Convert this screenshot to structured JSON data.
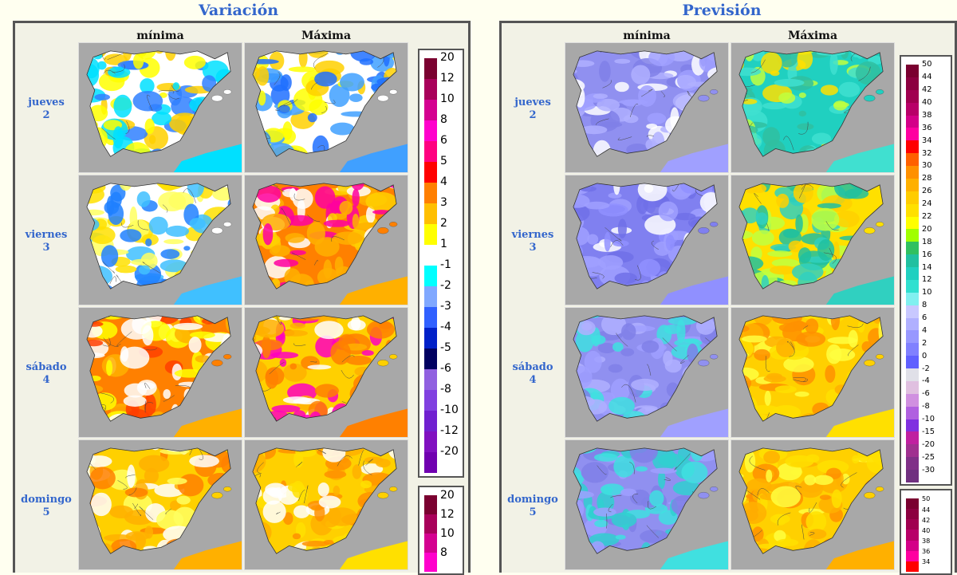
{
  "left_panel": {
    "title": "Variación",
    "columns": [
      "mínima",
      "Máxima"
    ],
    "rows": [
      {
        "day": "jueves",
        "num": "2",
        "maps": [
          "var-min-jue",
          "var-max-jue"
        ]
      },
      {
        "day": "viernes",
        "num": "3",
        "maps": [
          "var-min-vie",
          "var-max-vie"
        ]
      },
      {
        "day": "sábado",
        "num": "4",
        "maps": [
          "var-min-sab",
          "var-max-sab"
        ]
      },
      {
        "day": "domingo",
        "num": "5",
        "maps": [
          "var-min-dom",
          "var-max-dom"
        ]
      }
    ],
    "legend": [
      {
        "label": "20",
        "color": "#7a0030"
      },
      {
        "label": "12",
        "color": "#a8005a"
      },
      {
        "label": "10",
        "color": "#d40090"
      },
      {
        "label": "8",
        "color": "#ff00cc"
      },
      {
        "label": "6",
        "color": "#ff0080"
      },
      {
        "label": "5",
        "color": "#ff0000"
      },
      {
        "label": "4",
        "color": "#ff7f00"
      },
      {
        "label": "3",
        "color": "#ffbf00"
      },
      {
        "label": "2",
        "color": "#ffff00"
      },
      {
        "label": "1",
        "color": "#ffffff"
      },
      {
        "label": "-1",
        "color": "#00ffff"
      },
      {
        "label": "-2",
        "color": "#80a8ff"
      },
      {
        "label": "-3",
        "color": "#3060ff"
      },
      {
        "label": "-4",
        "color": "#0020c8"
      },
      {
        "label": "-5",
        "color": "#000060"
      },
      {
        "label": "-6",
        "color": "#9060e0"
      },
      {
        "label": "-8",
        "color": "#8040e0"
      },
      {
        "label": "-10",
        "color": "#7020d0"
      },
      {
        "label": "-12",
        "color": "#8010c0"
      },
      {
        "label": "-20",
        "color": "#7000b0"
      }
    ],
    "legend2": [
      {
        "label": "20",
        "color": "#7a0030"
      },
      {
        "label": "12",
        "color": "#a8005a"
      },
      {
        "label": "10",
        "color": "#d40090"
      },
      {
        "label": "8",
        "color": "#ff00cc"
      }
    ]
  },
  "right_panel": {
    "title": "Previsión",
    "columns": [
      "mínima",
      "Máxima"
    ],
    "rows": [
      {
        "day": "jueves",
        "num": "2"
      },
      {
        "day": "viernes",
        "num": "3"
      },
      {
        "day": "sábado",
        "num": "4"
      },
      {
        "day": "domingo",
        "num": "5"
      }
    ],
    "legend": [
      {
        "label": "50",
        "color": "#7a0030"
      },
      {
        "label": "44",
        "color": "#8c0040"
      },
      {
        "label": "42",
        "color": "#a00050"
      },
      {
        "label": "40",
        "color": "#b80068"
      },
      {
        "label": "38",
        "color": "#d40088"
      },
      {
        "label": "36",
        "color": "#ff00a0"
      },
      {
        "label": "34",
        "color": "#ff0000"
      },
      {
        "label": "32",
        "color": "#ff6000"
      },
      {
        "label": "30",
        "color": "#ff9000"
      },
      {
        "label": "28",
        "color": "#ffb000"
      },
      {
        "label": "26",
        "color": "#ffcc00"
      },
      {
        "label": "24",
        "color": "#ffe000"
      },
      {
        "label": "22",
        "color": "#ffff00"
      },
      {
        "label": "20",
        "color": "#a0ff00"
      },
      {
        "label": "18",
        "color": "#30c060"
      },
      {
        "label": "16",
        "color": "#20c0a0"
      },
      {
        "label": "14",
        "color": "#20d0c0"
      },
      {
        "label": "12",
        "color": "#30e0d0"
      },
      {
        "label": "10",
        "color": "#80f0f0"
      },
      {
        "label": "8",
        "color": "#c8c8ff"
      },
      {
        "label": "6",
        "color": "#b0b0ff"
      },
      {
        "label": "4",
        "color": "#9898ff"
      },
      {
        "label": "2",
        "color": "#8080ff"
      },
      {
        "label": "0",
        "color": "#6060ff"
      },
      {
        "label": "-2",
        "color": "#e0e0e8"
      },
      {
        "label": "-4",
        "color": "#e0c0e0"
      },
      {
        "label": "-6",
        "color": "#d090e0"
      },
      {
        "label": "-8",
        "color": "#b060e0"
      },
      {
        "label": "-10",
        "color": "#8030e0"
      },
      {
        "label": "-15",
        "color": "#c020a0"
      },
      {
        "label": "-20",
        "color": "#a03090"
      },
      {
        "label": "-25",
        "color": "#803088"
      },
      {
        "label": "-30",
        "color": "#703080"
      }
    ],
    "legend2": [
      {
        "label": "50",
        "color": "#7a0030"
      },
      {
        "label": "44",
        "color": "#8c0040"
      },
      {
        "label": "42",
        "color": "#a00050"
      },
      {
        "label": "40",
        "color": "#b80068"
      },
      {
        "label": "38",
        "color": "#d40088"
      },
      {
        "label": "36",
        "color": "#ff00a0"
      },
      {
        "label": "34",
        "color": "#ff0000"
      }
    ]
  },
  "map_palettes": {
    "var-min-jue": [
      "#ffffff",
      "#00e0ff",
      "#3080ff",
      "#ffff00",
      "#ffd000"
    ],
    "var-max-jue": [
      "#ffffff",
      "#40a0ff",
      "#2070ff",
      "#ffd000",
      "#ffff00"
    ],
    "var-min-vie": [
      "#ffffff",
      "#40c0ff",
      "#ffff60",
      "#2080ff",
      "#ffe000"
    ],
    "var-max-vie": [
      "#ff8000",
      "#ffb000",
      "#ff00a0",
      "#ffffff",
      "#ffd000"
    ],
    "var-min-sab": [
      "#ff8000",
      "#ffb000",
      "#ff4000",
      "#ffff00",
      "#ffffff"
    ],
    "var-max-sab": [
      "#ffd000",
      "#ff8000",
      "#ff00c0",
      "#ffffff",
      "#ffb000"
    ],
    "var-min-dom": [
      "#ffd000",
      "#ffb000",
      "#ffffff",
      "#ff8000",
      "#ffff60"
    ],
    "var-max-dom": [
      "#ffd000",
      "#ffe000",
      "#ffb000",
      "#ffffff",
      "#ff9000"
    ],
    "pre-min-jue": [
      "#9090f0",
      "#a0a0ff",
      "#8080e8",
      "#b0b0ff",
      "#ffffff"
    ],
    "pre-max-jue": [
      "#20d0c0",
      "#40e0d0",
      "#ffe000",
      "#c0ff40",
      "#30c0a0"
    ],
    "pre-min-vie": [
      "#8080f0",
      "#9090ff",
      "#7070e8",
      "#a0a0ff",
      "#ffffff"
    ],
    "pre-max-vie": [
      "#ffe000",
      "#30d0c0",
      "#ffd000",
      "#c0ff40",
      "#20c0a0"
    ],
    "pre-min-sab": [
      "#9090f0",
      "#a0a0ff",
      "#40e0e0",
      "#8080e8",
      "#b0b0ff"
    ],
    "pre-max-sab": [
      "#ffd000",
      "#ffe000",
      "#ffb000",
      "#ffff40",
      "#ff9000"
    ],
    "pre-min-dom": [
      "#9090f0",
      "#40e0e0",
      "#a0a0ff",
      "#30d0d0",
      "#8080e8"
    ],
    "pre-max-dom": [
      "#ffd000",
      "#ffb000",
      "#ff9000",
      "#ffe000",
      "#ffff40"
    ]
  }
}
